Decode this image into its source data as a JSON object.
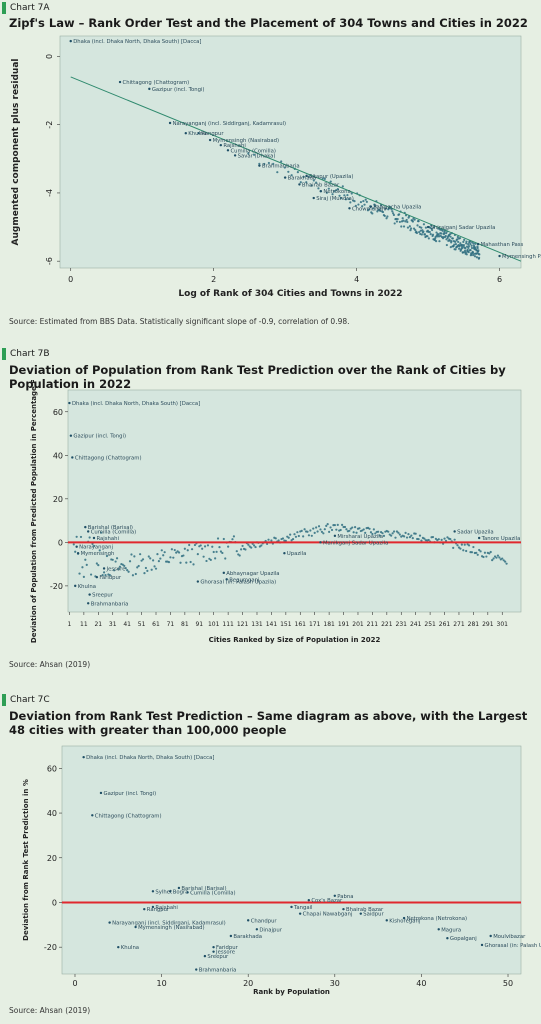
{
  "charts": [
    {
      "tag": "Chart 7A",
      "title": "Zipf's Law – Rank Order Test and the Placement of 304 Towns and Cities in 2022",
      "source": "Source: Estimated from BBS Data.  Statistically significant slope of -0.9, correlation of 0.98.",
      "chart_data": {
        "type": "scatter",
        "xlabel": "Log of Rank of 304 Cities and Towns in 2022",
        "ylabel": "Augmented component plus residual",
        "xlim": [
          -0.15,
          6.3
        ],
        "ylim": [
          -6.2,
          0.6
        ],
        "xticks": [
          0,
          2,
          4,
          6
        ],
        "yticks": [
          0,
          -2,
          -4,
          -6
        ],
        "grid": false,
        "fit_line": {
          "x": [
            0,
            6.3
          ],
          "y": [
            -0.6,
            -6.0
          ]
        },
        "labeled_points": [
          {
            "x": 0.0,
            "y": 0.45,
            "label": "Dhaka (incl. Dhaka North, Dhaka South) [Dacca]"
          },
          {
            "x": 0.69,
            "y": -0.75,
            "label": "Chittagong (Chattogram)"
          },
          {
            "x": 1.1,
            "y": -0.95,
            "label": "Gazipur (incl. Tongi)"
          },
          {
            "x": 1.39,
            "y": -1.95,
            "label": "Narayanganj (incl. Siddirganj, Kadamrasul)"
          },
          {
            "x": 1.61,
            "y": -2.25,
            "label": "Khulna"
          },
          {
            "x": 1.79,
            "y": -2.25,
            "label": "Rangpur"
          },
          {
            "x": 1.95,
            "y": -2.45,
            "label": "Mymensingh (Nasirabad)"
          },
          {
            "x": 2.1,
            "y": -2.6,
            "label": "Rajshahi"
          },
          {
            "x": 2.2,
            "y": -2.75,
            "label": "Cumilla (Comilla)"
          },
          {
            "x": 2.3,
            "y": -2.9,
            "label": "Savar (Dhaka)"
          },
          {
            "x": 2.64,
            "y": -3.2,
            "label": "Brahmanbaria"
          },
          {
            "x": 3.0,
            "y": -3.55,
            "label": "Barakhada"
          },
          {
            "x": 3.2,
            "y": -3.75,
            "label": "Bhairab Bazar"
          },
          {
            "x": 3.3,
            "y": -3.5,
            "label": "Sitapur (Upazila)"
          },
          {
            "x": 3.5,
            "y": -3.95,
            "label": "Netrokona"
          },
          {
            "x": 3.4,
            "y": -4.15,
            "label": "Siraj (Mundra)"
          },
          {
            "x": 3.9,
            "y": -4.45,
            "label": "Chowmuhani"
          },
          {
            "x": 4.2,
            "y": -4.4,
            "label": "Paikgacha Upazila"
          },
          {
            "x": 5.0,
            "y": -5.0,
            "label": "Shirajganj Sadar Upazila"
          },
          {
            "x": 5.7,
            "y": -5.5,
            "label": "Mahasthan Pass"
          },
          {
            "x": 6.0,
            "y": -5.85,
            "label": "Mymensingh Pass"
          }
        ]
      }
    },
    {
      "tag": "Chart 7B",
      "title": "Deviation of Population from Rank Test Prediction over the Rank of Cities by Population in 2022",
      "source": "Source: Ahsan (2019)",
      "chart_data": {
        "type": "scatter",
        "xlabel": "Cities Ranked by Size of Population in 2022",
        "ylabel": "Deviation of Population from Predicted Population in Percentage Points",
        "xlim": [
          0,
          314
        ],
        "ylim": [
          -32,
          70
        ],
        "xticks": [
          1,
          11,
          21,
          31,
          41,
          51,
          61,
          71,
          81,
          91,
          101,
          111,
          121,
          131,
          141,
          151,
          161,
          171,
          181,
          191,
          201,
          211,
          221,
          231,
          241,
          251,
          261,
          271,
          281,
          291,
          301
        ],
        "yticks": [
          60,
          40,
          20,
          0,
          -20
        ],
        "grid": false,
        "reference_line": 0,
        "labeled_points": [
          {
            "x": 1,
            "y": 64,
            "label": "Dhaka (incl. Dhaka North, Dhaka South) [Dacca]"
          },
          {
            "x": 2,
            "y": 49,
            "label": "Gazipur (incl. Tongi)"
          },
          {
            "x": 3,
            "y": 39,
            "label": "Chittagong (Chattogram)"
          },
          {
            "x": 12,
            "y": 7,
            "label": "Barishal (Barisal)"
          },
          {
            "x": 14,
            "y": 5,
            "label": "Cumilla (Comilla)"
          },
          {
            "x": 18,
            "y": 2,
            "label": "Rajshahi"
          },
          {
            "x": 6,
            "y": -2,
            "label": "Narayanganj"
          },
          {
            "x": 7,
            "y": -5,
            "label": "Mymensingh"
          },
          {
            "x": 5,
            "y": -20,
            "label": "Khulna"
          },
          {
            "x": 15,
            "y": -24,
            "label": "Sreepur"
          },
          {
            "x": 14,
            "y": -28,
            "label": "Brahmanbaria"
          },
          {
            "x": 20,
            "y": -16,
            "label": "Faridpur"
          },
          {
            "x": 25,
            "y": -12,
            "label": "Jessore"
          },
          {
            "x": 90,
            "y": -18,
            "label": "Ghorasal (in: Palash Upazila)"
          },
          {
            "x": 108,
            "y": -14,
            "label": "Abhaynagar Upazila"
          },
          {
            "x": 110,
            "y": -17,
            "label": "Begumganj"
          },
          {
            "x": 150,
            "y": -5,
            "label": "Upazila"
          },
          {
            "x": 185,
            "y": 3,
            "label": "Mirsharai Upazila"
          },
          {
            "x": 175,
            "y": 0,
            "label": "Manikganj Sadar Upazila"
          },
          {
            "x": 268,
            "y": 5,
            "label": "Sadar Upazila"
          },
          {
            "x": 285,
            "y": 2,
            "label": "Tanore Upazila"
          }
        ]
      }
    },
    {
      "tag": "Chart 7C",
      "title": "Deviation from Rank Test Prediction – Same diagram as above, with the Largest 48 cities with greater than 100,000 people",
      "source": "Source: Ahsan (2019)",
      "chart_data": {
        "type": "scatter",
        "xlabel": "Rank by Population",
        "ylabel": "Deviation from Rank Test Prediction in %",
        "xlim": [
          -1.5,
          51.5
        ],
        "ylim": [
          -32,
          70
        ],
        "xticks": [
          0,
          10,
          20,
          30,
          40,
          50
        ],
        "yticks": [
          60,
          40,
          20,
          0,
          -20
        ],
        "grid": false,
        "reference_line": 0,
        "labeled_points": [
          {
            "x": 1,
            "y": 65,
            "label": "Dhaka (incl. Dhaka North, Dhaka South) [Dacca]"
          },
          {
            "x": 3,
            "y": 49,
            "label": "Gazipur (incl. Tongi)"
          },
          {
            "x": 2,
            "y": 39,
            "label": "Chittagong (Chattogram)"
          },
          {
            "x": 12,
            "y": 6.5,
            "label": "Barishal (Barisal)"
          },
          {
            "x": 11,
            "y": 5,
            "label": "Bogra"
          },
          {
            "x": 13,
            "y": 4.5,
            "label": "Cumilla (Comilla)"
          },
          {
            "x": 9,
            "y": 5,
            "label": "Sylhet"
          },
          {
            "x": 8,
            "y": -3,
            "label": "Rangpur"
          },
          {
            "x": 9,
            "y": -2,
            "label": "Rajshahi"
          },
          {
            "x": 4,
            "y": -9,
            "label": "Narayanganj (incl. Siddirganj, Kadamrasul)"
          },
          {
            "x": 7,
            "y": -11,
            "label": "Mymensingh (Nasirabad)"
          },
          {
            "x": 5,
            "y": -20,
            "label": "Khulna"
          },
          {
            "x": 16,
            "y": -20,
            "label": "Faridpur"
          },
          {
            "x": 16,
            "y": -22,
            "label": "Jessore"
          },
          {
            "x": 15,
            "y": -24,
            "label": "Sreepur"
          },
          {
            "x": 14,
            "y": -30,
            "label": "Brahmanbaria"
          },
          {
            "x": 18,
            "y": -15,
            "label": "Barakhada"
          },
          {
            "x": 21,
            "y": -12,
            "label": "Dinajpur"
          },
          {
            "x": 20,
            "y": -8,
            "label": "Chandpur"
          },
          {
            "x": 27,
            "y": 1,
            "label": "Cox's Bazar"
          },
          {
            "x": 30,
            "y": 3,
            "label": "Pabna"
          },
          {
            "x": 25,
            "y": -2,
            "label": "Tangail"
          },
          {
            "x": 26,
            "y": -5,
            "label": "Chapai Nawabganj"
          },
          {
            "x": 31,
            "y": -3,
            "label": "Bhairab Bazar"
          },
          {
            "x": 33,
            "y": -5,
            "label": "Saidpur"
          },
          {
            "x": 36,
            "y": -8,
            "label": "Kishoreganj"
          },
          {
            "x": 38,
            "y": -7,
            "label": "Netrokona (Netrokona)"
          },
          {
            "x": 42,
            "y": -12,
            "label": "Magura"
          },
          {
            "x": 43,
            "y": -16,
            "label": "Gopalganj"
          },
          {
            "x": 48,
            "y": -15,
            "label": "Moulvibazar"
          },
          {
            "x": 47,
            "y": -19,
            "label": "Ghorasal (in: Palash Upazila)"
          }
        ]
      }
    }
  ]
}
